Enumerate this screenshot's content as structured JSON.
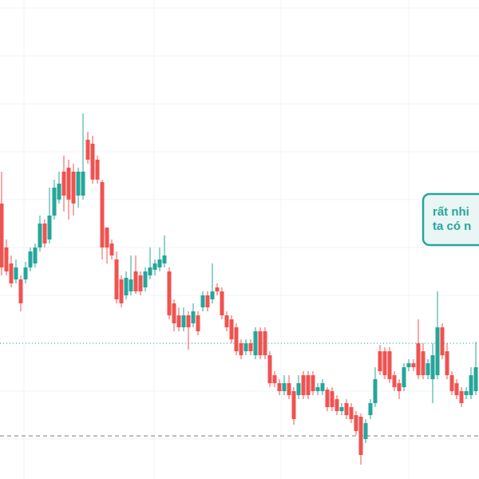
{
  "chart_data": {
    "type": "candlestick",
    "up_color": "#26a69a",
    "down_color": "#ef5350",
    "xlim": [
      -0.333,
      99.667
    ],
    "xticks": [
      4.67,
      31.83,
      58.33,
      85
    ],
    "ylim": [
      0,
      600
    ],
    "yticks": [
      50,
      110,
      170,
      230,
      290,
      350,
      410,
      470,
      530,
      590
    ],
    "grid": true,
    "open": [
      345,
      290,
      270,
      250,
      250,
      250,
      265,
      270,
      290,
      320,
      300,
      330,
      350,
      385,
      390,
      385,
      355,
      355,
      425,
      420,
      400,
      372,
      315,
      295,
      275,
      250,
      230,
      235,
      260,
      255,
      240,
      255,
      262,
      265,
      270,
      260,
      220,
      205,
      190,
      205,
      195,
      205,
      215,
      230,
      225,
      240,
      235,
      205,
      200,
      190,
      170,
      160,
      170,
      155,
      185,
      185,
      155,
      130,
      120,
      110,
      120,
      110,
      105,
      130,
      130,
      130,
      110,
      110,
      112,
      110,
      100,
      85,
      95,
      90,
      80,
      78,
      50,
      80,
      95,
      160,
      160,
      160,
      130,
      120,
      115,
      140,
      145,
      170,
      160,
      130,
      125,
      130,
      190,
      160,
      130,
      120,
      110,
      105,
      105,
      110
    ],
    "high": [
      385,
      300,
      280,
      275,
      255,
      272,
      290,
      295,
      330,
      325,
      365,
      375,
      385,
      405,
      400,
      395,
      390,
      458,
      435,
      430,
      405,
      375,
      315,
      300,
      285,
      255,
      260,
      280,
      280,
      260,
      265,
      290,
      275,
      290,
      305,
      265,
      225,
      215,
      215,
      210,
      220,
      210,
      235,
      235,
      270,
      245,
      240,
      210,
      205,
      195,
      175,
      175,
      175,
      190,
      190,
      190,
      160,
      135,
      125,
      130,
      130,
      115,
      130,
      135,
      135,
      135,
      120,
      125,
      115,
      115,
      105,
      95,
      100,
      95,
      85,
      82,
      75,
      100,
      140,
      168,
      165,
      165,
      135,
      125,
      145,
      150,
      150,
      200,
      170,
      150,
      170,
      235,
      195,
      170,
      135,
      125,
      115,
      115,
      140,
      172
    ],
    "low": [
      255,
      255,
      240,
      245,
      210,
      245,
      260,
      265,
      285,
      290,
      295,
      325,
      345,
      335,
      325,
      330,
      340,
      350,
      395,
      370,
      370,
      275,
      270,
      275,
      220,
      215,
      225,
      230,
      232,
      230,
      235,
      250,
      255,
      260,
      265,
      200,
      185,
      185,
      185,
      162,
      190,
      180,
      210,
      210,
      220,
      230,
      200,
      185,
      170,
      155,
      150,
      155,
      155,
      150,
      150,
      150,
      115,
      115,
      105,
      105,
      100,
      68,
      100,
      100,
      100,
      105,
      105,
      105,
      85,
      85,
      80,
      80,
      75,
      70,
      55,
      18,
      45,
      75,
      90,
      130,
      125,
      120,
      110,
      100,
      110,
      135,
      135,
      125,
      125,
      125,
      95,
      125,
      150,
      125,
      105,
      100,
      90,
      100,
      100,
      105
    ],
    "close": [
      265,
      260,
      245,
      265,
      220,
      265,
      285,
      290,
      320,
      295,
      330,
      365,
      370,
      355,
      350,
      345,
      385,
      385,
      400,
      375,
      375,
      290,
      290,
      280,
      225,
      220,
      252,
      250,
      235,
      235,
      260,
      265,
      270,
      275,
      280,
      205,
      195,
      190,
      205,
      190,
      210,
      185,
      230,
      215,
      235,
      235,
      205,
      190,
      175,
      160,
      155,
      170,
      160,
      185,
      155,
      155,
      120,
      120,
      110,
      120,
      105,
      75,
      120,
      105,
      105,
      110,
      115,
      120,
      90,
      90,
      85,
      90,
      80,
      75,
      60,
      30,
      70,
      95,
      125,
      135,
      130,
      125,
      115,
      110,
      140,
      145,
      140,
      130,
      130,
      145,
      155,
      190,
      155,
      130,
      110,
      105,
      95,
      110,
      130,
      140
    ],
    "levels": [
      {
        "value": 170,
        "color": "#26a69a",
        "style": "dotted"
      },
      {
        "value": 54,
        "color": "#787b86",
        "style": "dashed"
      }
    ],
    "annotation": {
      "lines": [
        "rất nhi",
        "ta có n"
      ],
      "color": "#26a69a"
    }
  }
}
